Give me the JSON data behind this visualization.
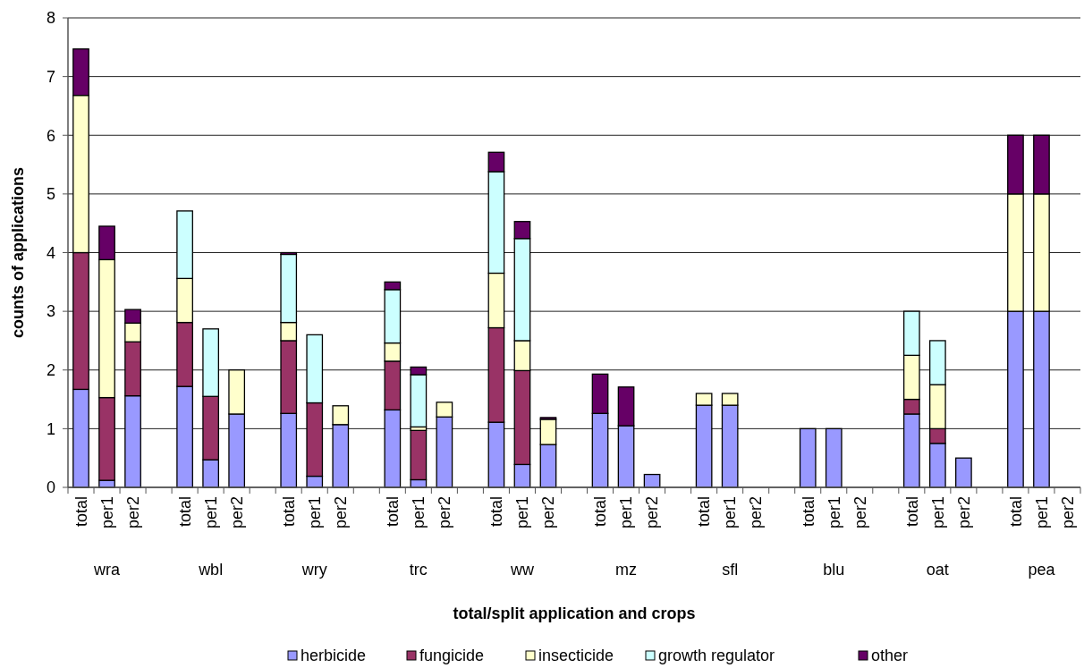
{
  "chart_data": {
    "type": "bar",
    "stacked": true,
    "xlabel": "total/split application and crops",
    "ylabel": "counts of applications",
    "categories": [
      "total",
      "per1",
      "per2",
      null,
      "total",
      "per1",
      "per2",
      null,
      "total",
      "per1",
      "per2",
      null,
      "total",
      "per1",
      "per2",
      null,
      "total",
      "per1",
      "per2",
      null,
      "total",
      "per1",
      "per2",
      null,
      "total",
      "per1",
      "per2",
      null,
      "total",
      "per1",
      "per2",
      null,
      "total",
      "per1",
      "per2",
      null,
      "total",
      "per1",
      "per2"
    ],
    "annotations": [
      "wra",
      "wbl",
      "wry",
      "trc",
      "ww",
      "mz",
      "sfl",
      "blu",
      "oat",
      "pea"
    ],
    "series": [
      {
        "name": "herbicide",
        "color": "#9999ff",
        "values": [
          1.67,
          0.12,
          1.56,
          null,
          1.72,
          0.47,
          1.25,
          null,
          1.26,
          0.19,
          1.07,
          null,
          1.32,
          0.13,
          1.2,
          null,
          1.11,
          0.39,
          0.73,
          null,
          1.26,
          1.05,
          0.22,
          null,
          1.4,
          1.4,
          null,
          null,
          1.0,
          1.0,
          null,
          null,
          1.25,
          0.75,
          0.5,
          null,
          3.0,
          3.0,
          null
        ]
      },
      {
        "name": "fungicide",
        "color": "#993366",
        "values": [
          2.33,
          1.41,
          0.92,
          null,
          1.09,
          1.08,
          null,
          null,
          1.24,
          1.25,
          null,
          null,
          0.83,
          0.84,
          null,
          null,
          1.61,
          1.6,
          null,
          null,
          null,
          null,
          null,
          null,
          null,
          null,
          null,
          null,
          null,
          null,
          null,
          null,
          0.25,
          0.25,
          null,
          null,
          null,
          null,
          null
        ]
      },
      {
        "name": "insecticide",
        "color": "#ffffcc",
        "values": [
          2.68,
          2.35,
          0.32,
          null,
          0.75,
          null,
          0.75,
          null,
          0.31,
          null,
          0.32,
          null,
          0.31,
          0.06,
          0.25,
          null,
          0.93,
          0.51,
          0.43,
          null,
          null,
          null,
          null,
          null,
          0.2,
          0.2,
          null,
          null,
          null,
          null,
          null,
          null,
          0.75,
          0.75,
          null,
          null,
          2.0,
          2.0,
          null
        ]
      },
      {
        "name": "growth regulator",
        "color": "#ccffff",
        "values": [
          null,
          null,
          null,
          null,
          1.15,
          1.15,
          null,
          null,
          1.16,
          1.16,
          null,
          null,
          0.91,
          0.89,
          null,
          null,
          1.73,
          1.74,
          null,
          null,
          null,
          null,
          null,
          null,
          null,
          null,
          null,
          null,
          null,
          null,
          null,
          null,
          0.75,
          0.75,
          null,
          null,
          null,
          null,
          null
        ]
      },
      {
        "name": "other",
        "color": "#660066",
        "values": [
          0.79,
          0.57,
          0.23,
          null,
          null,
          null,
          null,
          null,
          0.03,
          null,
          null,
          null,
          0.13,
          0.13,
          null,
          null,
          0.33,
          0.29,
          0.03,
          null,
          0.67,
          0.66,
          null,
          null,
          null,
          null,
          null,
          null,
          null,
          null,
          null,
          null,
          null,
          null,
          null,
          null,
          1.0,
          1.0,
          null
        ]
      }
    ],
    "ylim": [
      0,
      8
    ],
    "yticks": [
      0,
      1,
      2,
      3,
      4,
      5,
      6,
      7,
      8
    ],
    "grid": "y",
    "legend": "bottom"
  }
}
